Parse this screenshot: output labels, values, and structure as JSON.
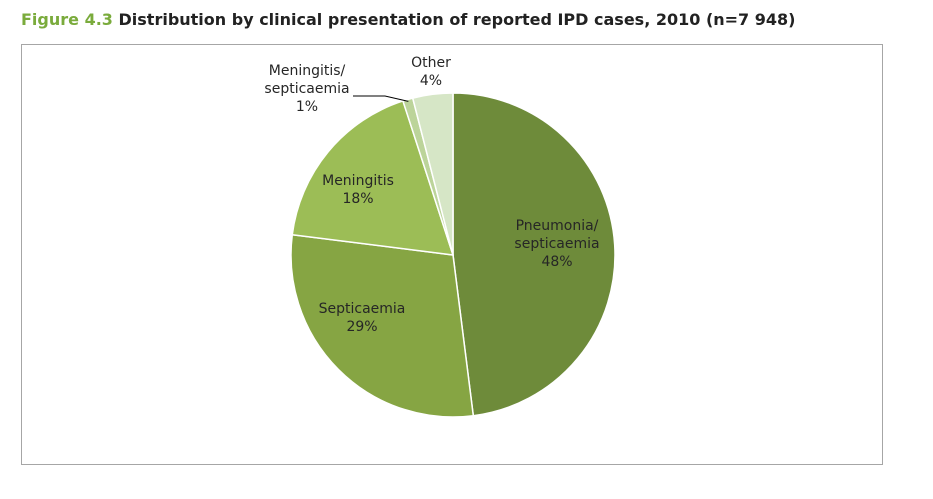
{
  "figure": {
    "number": "Figure 4.3",
    "title": "Distribution by clinical presentation of reported IPD cases, 2010 (n=7 948)"
  },
  "chart_data": {
    "type": "pie",
    "title": "Distribution by clinical presentation of reported IPD cases, 2010 (n=7 948)",
    "slices": [
      {
        "label": [
          "Pneumonia/",
          "septicaemia"
        ],
        "value": 48,
        "value_label": "48%",
        "color": "#6e8b3a"
      },
      {
        "label": [
          "Septicaemia"
        ],
        "value": 29,
        "value_label": "29%",
        "color": "#86a543"
      },
      {
        "label": [
          "Meningitis"
        ],
        "value": 18,
        "value_label": "18%",
        "color": "#9cbd56"
      },
      {
        "label": [
          "Meningitis/",
          "septicaemia"
        ],
        "value": 1,
        "value_label": "1%",
        "color": "#bcd49a"
      },
      {
        "label": [
          "Other"
        ],
        "value": 4,
        "value_label": "4%",
        "color": "#d6e6c6"
      }
    ],
    "legend": "none",
    "start_angle": "12 o'clock, clockwise"
  }
}
